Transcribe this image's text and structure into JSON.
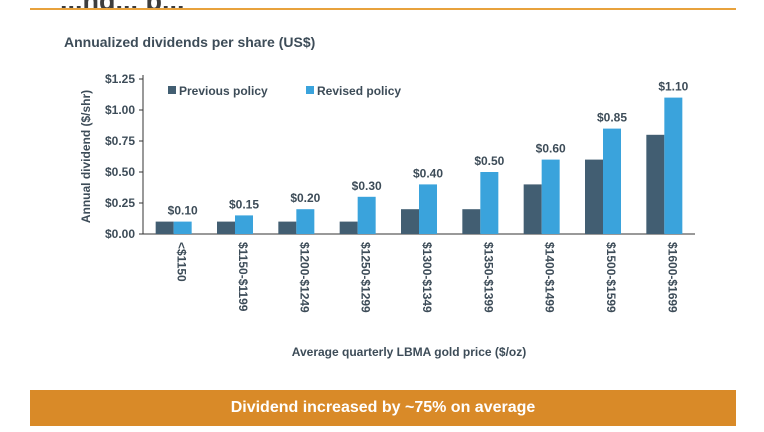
{
  "page": {
    "top_title": "...ng... p...",
    "subtitle": "Annualized dividends per share (US$)",
    "banner": "Dividend increased by ~75% on average",
    "footnote": ""
  },
  "colors": {
    "previous": "#425e72",
    "revised": "#3aa3dc",
    "accent": "#d98a28",
    "text": "#3d4c58"
  },
  "chart_data": {
    "type": "bar",
    "categories": [
      "<$1150",
      "$1150-$1199",
      "$1200-$1249",
      "$1250-$1299",
      "$1300-$1349",
      "$1350-$1399",
      "$1400-$1499",
      "$1500-$1599",
      "$1600-$1699"
    ],
    "series": [
      {
        "name": "Previous policy",
        "values": [
          0.1,
          0.1,
          0.1,
          0.1,
          0.2,
          0.2,
          0.4,
          0.6,
          0.8
        ]
      },
      {
        "name": "Revised policy",
        "values": [
          0.1,
          0.15,
          0.2,
          0.3,
          0.4,
          0.5,
          0.6,
          0.85,
          1.1
        ]
      }
    ],
    "data_labels": [
      "$0.10",
      "$0.15",
      "$0.20",
      "$0.30",
      "$0.40",
      "$0.50",
      "$0.60",
      "$0.85",
      "$1.10"
    ],
    "ylabel": "Annual dividend ($/shr)",
    "xlabel": "Average quarterly LBMA gold price ($/oz)",
    "yticks": [
      "$0.00",
      "$0.25",
      "$0.50",
      "$0.75",
      "$1.00",
      "$1.25"
    ],
    "ylim": [
      0,
      1.25
    ],
    "legend_position": "top-left",
    "grid": false
  }
}
